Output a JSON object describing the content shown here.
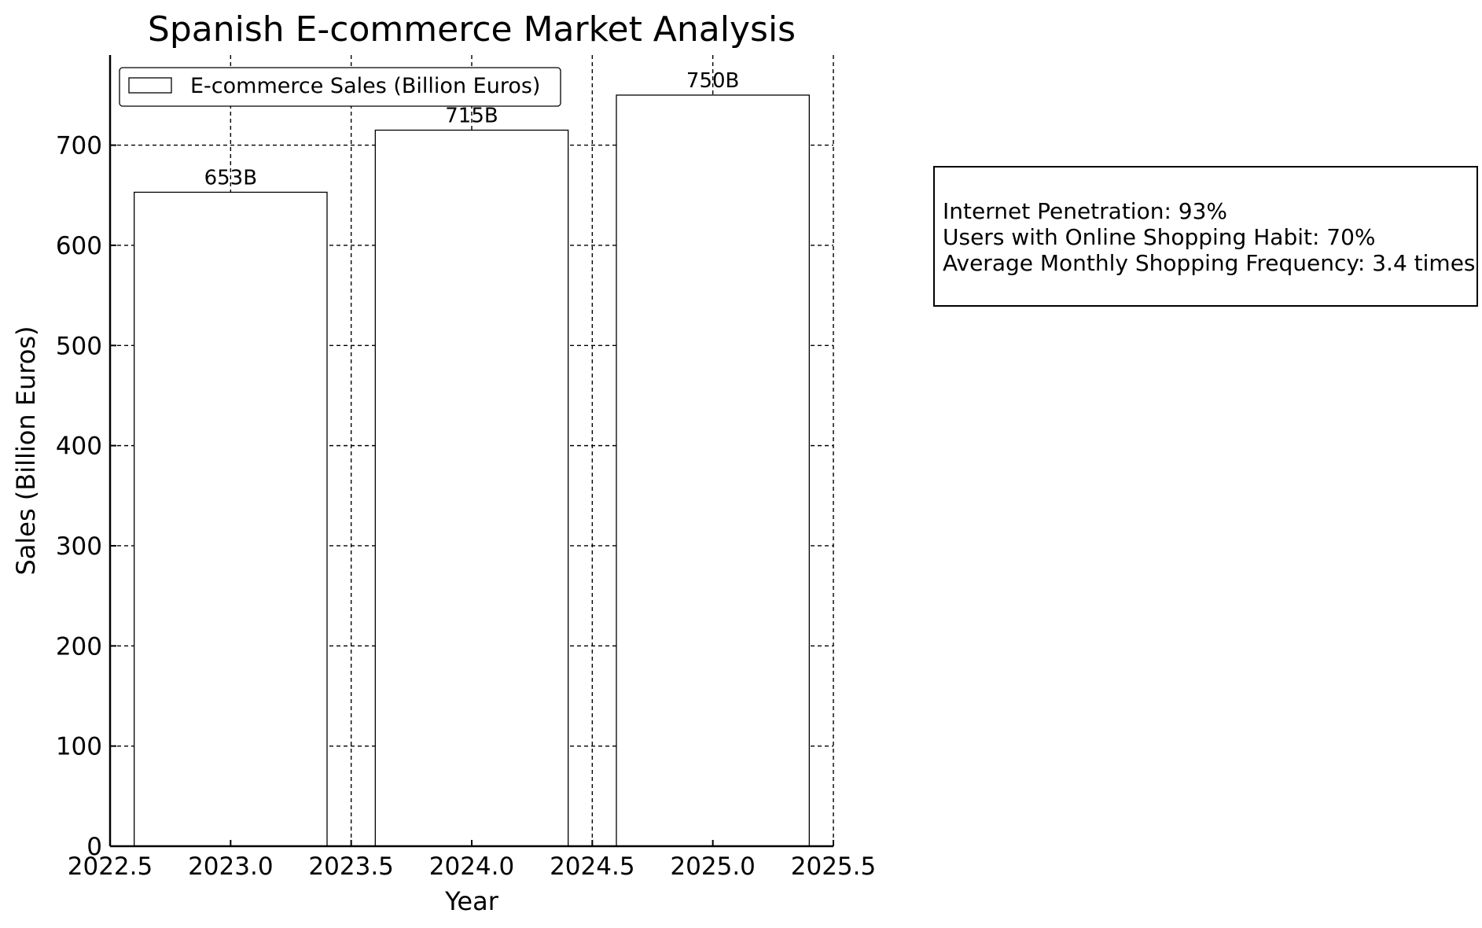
{
  "chart_data": {
    "type": "bar",
    "title": "Spanish E-commerce Market Analysis",
    "xlabel": "Year",
    "ylabel": "Sales (Billion Euros)",
    "x": [
      2023,
      2024,
      2025
    ],
    "values": [
      653,
      715,
      750
    ],
    "data_labels": [
      "653B",
      "715B",
      "750B"
    ],
    "bar_width": 0.8,
    "xlim": [
      2022.5,
      2025.5
    ],
    "ylim": [
      0,
      790
    ],
    "xticks": [
      2022.5,
      2023.0,
      2023.5,
      2024.0,
      2024.5,
      2025.0,
      2025.5
    ],
    "xtick_labels": [
      "2022.5",
      "2023.0",
      "2023.5",
      "2024.0",
      "2024.5",
      "2025.0",
      "2025.5"
    ],
    "yticks": [
      0,
      100,
      200,
      300,
      400,
      500,
      600,
      700
    ],
    "ytick_labels": [
      "0",
      "100",
      "200",
      "300",
      "400",
      "500",
      "600",
      "700"
    ],
    "grid": true,
    "grid_style": "dashed",
    "legend": {
      "placement": "upper-left",
      "entries": [
        "E-commerce Sales (Billion Euros)"
      ]
    },
    "colors": {
      "bar_fill": "#ffffff",
      "bar_edge": "#000000",
      "grid": "#000000",
      "text": "#000000"
    }
  },
  "info_box": {
    "lines": [
      "Internet Penetration: 93%",
      "Users with Online Shopping Habit: 70%",
      "Average Monthly Shopping Frequency: 3.4 times"
    ]
  }
}
